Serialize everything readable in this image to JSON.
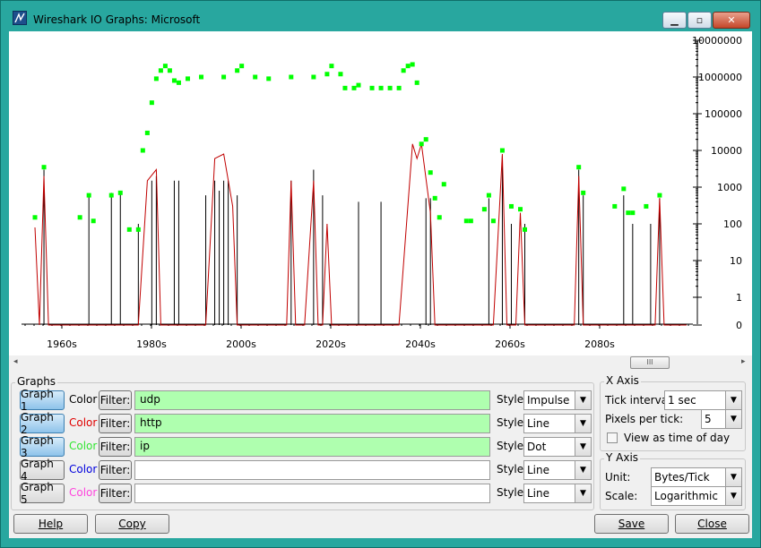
{
  "window": {
    "title": "Wireshark IO Graphs: Microsoft"
  },
  "chart_data": {
    "type": "line",
    "y_scale": "log",
    "yaxis_ticks": [
      "10000000",
      "1000000",
      "100000",
      "10000",
      "1000",
      "100",
      "10",
      "1",
      "0"
    ],
    "xaxis_ticks": [
      "1960s",
      "1970s",
      "1980s",
      "2000s",
      "2020s",
      "2040s",
      "2060s",
      "2080s"
    ],
    "series": [
      {
        "name": "udp",
        "style": "Impulse",
        "color": "#000000",
        "points": [
          [
            1955,
            3000
          ],
          [
            1965,
            600
          ],
          [
            1970,
            700
          ],
          [
            1972,
            700
          ],
          [
            1976,
            100
          ],
          [
            1979,
            1500
          ],
          [
            1980,
            2000
          ],
          [
            1984,
            1500
          ],
          [
            1985,
            1500
          ],
          [
            1991,
            600
          ],
          [
            1993,
            1500
          ],
          [
            1994,
            800
          ],
          [
            1995,
            1500
          ],
          [
            1996,
            1500
          ],
          [
            1998,
            600
          ],
          [
            2010,
            1500
          ],
          [
            2015,
            3000
          ],
          [
            2017,
            600
          ],
          [
            2025,
            400
          ],
          [
            2030,
            400
          ],
          [
            2040,
            500
          ],
          [
            2041,
            500
          ],
          [
            2054,
            500
          ],
          [
            2057,
            7000
          ],
          [
            2059,
            100
          ],
          [
            2062,
            100
          ],
          [
            2074,
            3000
          ],
          [
            2075,
            600
          ],
          [
            2084,
            600
          ],
          [
            2086,
            100
          ],
          [
            2090,
            100
          ],
          [
            2092,
            500
          ]
        ]
      },
      {
        "name": "http",
        "style": "Line",
        "color": "#c00000",
        "points": [
          [
            1953,
            80
          ],
          [
            1954,
            0
          ],
          [
            1955,
            2000
          ],
          [
            1956,
            0
          ],
          [
            1976,
            0
          ],
          [
            1978,
            1500
          ],
          [
            1980,
            3000
          ],
          [
            1981,
            0
          ],
          [
            1991,
            0
          ],
          [
            1993,
            6000
          ],
          [
            1995,
            8000
          ],
          [
            1997,
            300
          ],
          [
            1998,
            0
          ],
          [
            2009,
            0
          ],
          [
            2010,
            1500
          ],
          [
            2011,
            0
          ],
          [
            2013,
            0
          ],
          [
            2015,
            1500
          ],
          [
            2016,
            0
          ],
          [
            2017,
            0
          ],
          [
            2018,
            100
          ],
          [
            2019,
            0
          ],
          [
            2034,
            0
          ],
          [
            2037,
            15000
          ],
          [
            2038,
            6000
          ],
          [
            2039,
            15000
          ],
          [
            2041,
            200
          ],
          [
            2042,
            0
          ],
          [
            2055,
            0
          ],
          [
            2057,
            8000
          ],
          [
            2058,
            0
          ],
          [
            2060,
            0
          ],
          [
            2061,
            200
          ],
          [
            2062,
            0
          ],
          [
            2073,
            0
          ],
          [
            2074,
            2000
          ],
          [
            2075,
            0
          ],
          [
            2091,
            0
          ],
          [
            2092,
            500
          ],
          [
            2093,
            0
          ],
          [
            2098,
            0
          ]
        ]
      },
      {
        "name": "ip",
        "style": "Dot",
        "color": "#00ff00",
        "points": [
          [
            1953,
            150
          ],
          [
            1955,
            3500
          ],
          [
            1963,
            150
          ],
          [
            1965,
            600
          ],
          [
            1966,
            120
          ],
          [
            1970,
            600
          ],
          [
            1972,
            700
          ],
          [
            1974,
            70
          ],
          [
            1976,
            70
          ],
          [
            1977,
            10000
          ],
          [
            1978,
            30000
          ],
          [
            1979,
            200000
          ],
          [
            1980,
            900000
          ],
          [
            1981,
            1500000
          ],
          [
            1982,
            2000000
          ],
          [
            1983,
            1500000
          ],
          [
            1984,
            800000
          ],
          [
            1985,
            700000
          ],
          [
            1987,
            900000
          ],
          [
            1990,
            1000000
          ],
          [
            1995,
            1000000
          ],
          [
            1998,
            1500000
          ],
          [
            1999,
            2000000
          ],
          [
            2002,
            1000000
          ],
          [
            2005,
            900000
          ],
          [
            2010,
            1000000
          ],
          [
            2015,
            1000000
          ],
          [
            2018,
            1200000
          ],
          [
            2019,
            2000000
          ],
          [
            2021,
            1200000
          ],
          [
            2022,
            500000
          ],
          [
            2024,
            500000
          ],
          [
            2025,
            600000
          ],
          [
            2028,
            500000
          ],
          [
            2030,
            500000
          ],
          [
            2032,
            500000
          ],
          [
            2034,
            500000
          ],
          [
            2035,
            1500000
          ],
          [
            2036,
            2000000
          ],
          [
            2037,
            2200000
          ],
          [
            2038,
            700000
          ],
          [
            2039,
            15000
          ],
          [
            2040,
            20000
          ],
          [
            2041,
            2500
          ],
          [
            2042,
            500
          ],
          [
            2043,
            150
          ],
          [
            2044,
            1200
          ],
          [
            2049,
            120
          ],
          [
            2050,
            120
          ],
          [
            2053,
            250
          ],
          [
            2054,
            600
          ],
          [
            2055,
            120
          ],
          [
            2057,
            10000
          ],
          [
            2059,
            300
          ],
          [
            2061,
            250
          ],
          [
            2062,
            70
          ],
          [
            2074,
            3500
          ],
          [
            2075,
            700
          ],
          [
            2082,
            300
          ],
          [
            2084,
            900
          ],
          [
            2085,
            200
          ],
          [
            2086,
            200
          ],
          [
            2089,
            300
          ],
          [
            2092,
            600
          ]
        ]
      }
    ]
  },
  "scroll": {
    "thumb_glyph": "III",
    "left_arrow": "◂",
    "right_arrow": "▸"
  },
  "graphs": {
    "label": "Graphs",
    "color_label": "Color",
    "filter_label": "Filter:",
    "style_label": "Style:",
    "rows": [
      {
        "button": "Graph 1",
        "color": "#000000",
        "filter": "udp",
        "style": "Impulse",
        "active": true
      },
      {
        "button": "Graph 2",
        "color": "#e00000",
        "filter": "http",
        "style": "Line",
        "active": true
      },
      {
        "button": "Graph 3",
        "color": "#33e633",
        "filter": "ip",
        "style": "Dot",
        "active": true
      },
      {
        "button": "Graph 4",
        "color": "#0000dd",
        "filter": "",
        "style": "Line",
        "active": false
      },
      {
        "button": "Graph 5",
        "color": "#ff44dd",
        "filter": "",
        "style": "Line",
        "active": false
      }
    ]
  },
  "x_axis": {
    "label": "X Axis",
    "tick_interval_label": "Tick interval:",
    "tick_interval": "1 sec",
    "pixels_per_tick_label": "Pixels per tick:",
    "pixels_per_tick": "5",
    "view_time_of_day_label": "View as time of day",
    "view_time_of_day_checked": false
  },
  "y_axis": {
    "label": "Y Axis",
    "unit_label": "Unit:",
    "unit": "Bytes/Tick",
    "scale_label": "Scale:",
    "scale": "Logarithmic"
  },
  "buttons": {
    "help": "Help",
    "copy": "Copy",
    "save": "Save",
    "close": "Close"
  }
}
